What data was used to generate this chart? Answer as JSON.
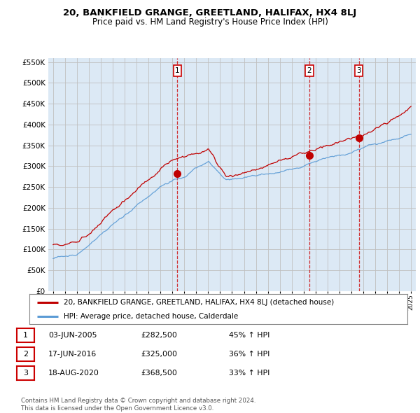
{
  "title": "20, BANKFIELD GRANGE, GREETLAND, HALIFAX, HX4 8LJ",
  "subtitle": "Price paid vs. HM Land Registry's House Price Index (HPI)",
  "yticks": [
    0,
    50000,
    100000,
    150000,
    200000,
    250000,
    300000,
    350000,
    400000,
    450000,
    500000,
    550000
  ],
  "ylim": [
    0,
    560000
  ],
  "sale_dates_num": [
    2005.42,
    2016.46,
    2020.62
  ],
  "sale_prices": [
    282500,
    325000,
    368500
  ],
  "sale_labels": [
    "1",
    "2",
    "3"
  ],
  "hpi_color": "#5b9bd5",
  "price_color": "#c00000",
  "vline_color": "#cc0000",
  "plot_bg_color": "#dce9f5",
  "legend_price_label": "20, BANKFIELD GRANGE, GREETLAND, HALIFAX, HX4 8LJ (detached house)",
  "legend_hpi_label": "HPI: Average price, detached house, Calderdale",
  "table_data": [
    [
      "1",
      "03-JUN-2005",
      "£282,500",
      "45% ↑ HPI"
    ],
    [
      "2",
      "17-JUN-2016",
      "£325,000",
      "36% ↑ HPI"
    ],
    [
      "3",
      "18-AUG-2020",
      "£368,500",
      "33% ↑ HPI"
    ]
  ],
  "footer": "Contains HM Land Registry data © Crown copyright and database right 2024.\nThis data is licensed under the Open Government Licence v3.0.",
  "background_color": "#ffffff",
  "grid_color": "#c0c0c0"
}
